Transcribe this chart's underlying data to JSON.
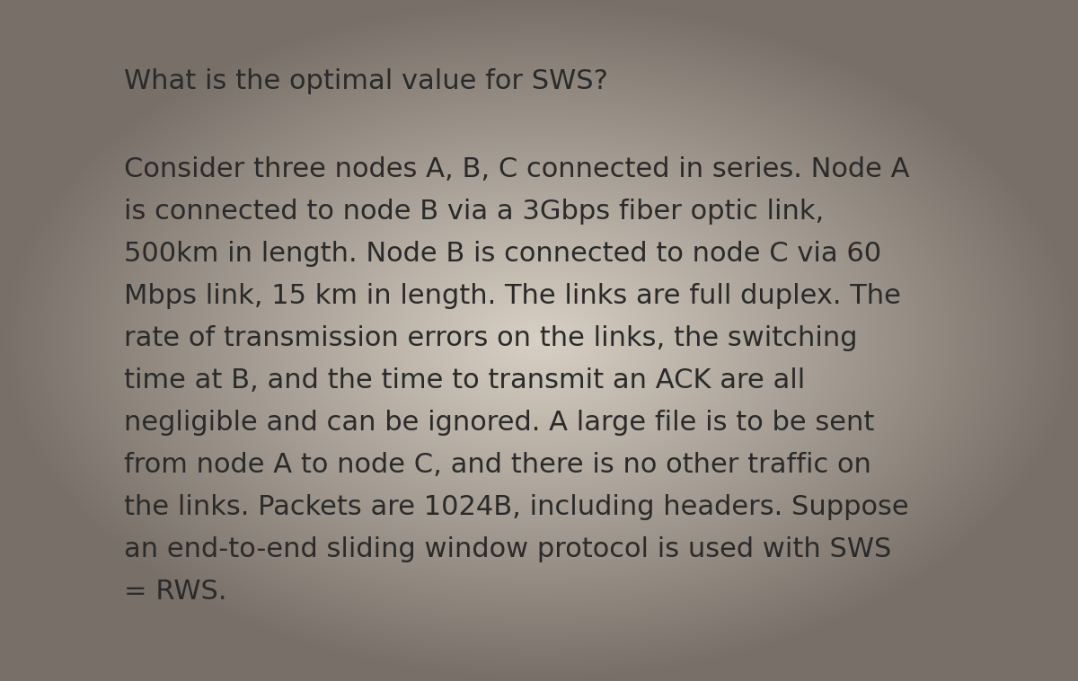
{
  "background_color_center": "#d8d0c4",
  "background_color_edge": "#787068",
  "title_text": "What is the optimal value for SWS?",
  "title_fontsize": 22,
  "title_fontweight": "normal",
  "title_color": "#2a2a2a",
  "body_lines": [
    "Consider three nodes A, B, C connected in series. Node A",
    "is connected to node B via a 3Gbps fiber optic link,",
    "500km in length. Node B is connected to node C via 60",
    "Mbps link, 15 km in length. The links are full duplex. The",
    "rate of transmission errors on the links, the switching",
    "time at B, and the time to transmit an ACK are all",
    "negligible and can be ignored. A large file is to be sent",
    "from node A to node C, and there is no other traffic on",
    "the links. Packets are 1024B, including headers. Suppose",
    "an end-to-end sliding window protocol is used with SWS",
    "= RWS."
  ],
  "body_fontsize": 22,
  "body_color": "#2a2a2a",
  "body_font": "DejaVu Sans"
}
